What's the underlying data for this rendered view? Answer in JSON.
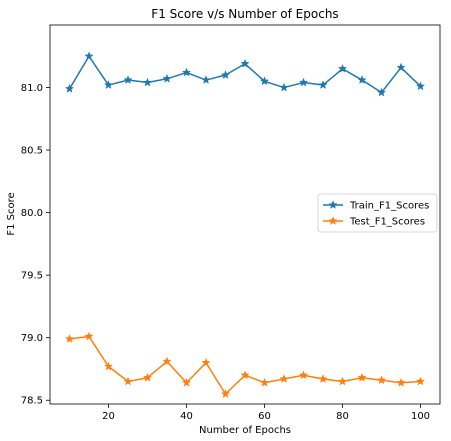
{
  "chart_data": {
    "type": "line",
    "title": "F1 Score v/s Number of Epochs",
    "xlabel": "Number of Epochs",
    "ylabel": "F1 Score",
    "xlim": [
      5,
      105
    ],
    "ylim": [
      78.47,
      81.5
    ],
    "x_ticks": [
      20,
      40,
      60,
      80,
      100
    ],
    "y_ticks": [
      78.5,
      79.0,
      79.5,
      80.0,
      80.5,
      81.0
    ],
    "y_tick_labels": [
      "78.5",
      "79.0",
      "79.5",
      "80.0",
      "80.5",
      "81.0"
    ],
    "grid": false,
    "legend_position": "center-right",
    "x": [
      10,
      15,
      20,
      25,
      30,
      35,
      40,
      45,
      50,
      55,
      60,
      65,
      70,
      75,
      80,
      85,
      90,
      95,
      100
    ],
    "series": [
      {
        "name": "Train_F1_Scores",
        "color": "#1f77b4",
        "marker": "star",
        "values": [
          80.99,
          81.25,
          81.02,
          81.06,
          81.04,
          81.07,
          81.12,
          81.06,
          81.1,
          81.19,
          81.05,
          81.0,
          81.04,
          81.02,
          81.15,
          81.06,
          80.96,
          81.16,
          81.01
        ]
      },
      {
        "name": "Test_F1_Scores",
        "color": "#ff7f0e",
        "marker": "star",
        "values": [
          78.99,
          79.01,
          78.77,
          78.65,
          78.68,
          78.81,
          78.64,
          78.8,
          78.55,
          78.7,
          78.64,
          78.67,
          78.7,
          78.67,
          78.65,
          78.68,
          78.66,
          78.64,
          78.65
        ]
      }
    ]
  }
}
